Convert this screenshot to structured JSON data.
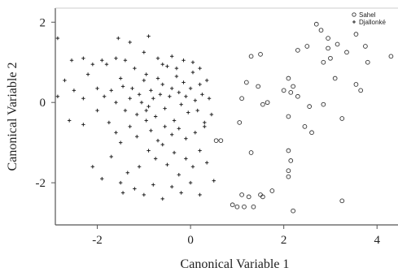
{
  "chart_data": {
    "type": "scatter",
    "title": "",
    "xlabel": "Canonical Variable 1",
    "ylabel": "Canonical Variable 2",
    "xlim": [
      -2.9,
      4.45
    ],
    "ylim": [
      -3.05,
      2.35
    ],
    "xticks": [
      -2,
      0,
      2,
      4
    ],
    "yticks": [
      -2,
      0,
      2
    ],
    "xtick_labels": [
      "-2",
      "0",
      "2",
      "4"
    ],
    "ytick_labels": [
      "-2",
      "0",
      "2"
    ],
    "grid": false,
    "legend_position": "top-right",
    "series": [
      {
        "name": "Sahel",
        "marker": "circle",
        "points": [
          [
            2.7,
            1.95
          ],
          [
            2.8,
            1.8
          ],
          [
            2.95,
            1.6
          ],
          [
            3.15,
            1.45
          ],
          [
            3.55,
            1.7
          ],
          [
            2.5,
            1.4
          ],
          [
            2.95,
            1.35
          ],
          [
            3.35,
            1.25
          ],
          [
            3.75,
            1.4
          ],
          [
            4.3,
            1.15
          ],
          [
            3.0,
            1.1
          ],
          [
            3.8,
            1.0
          ],
          [
            1.3,
            1.15
          ],
          [
            1.5,
            1.2
          ],
          [
            2.3,
            1.3
          ],
          [
            2.85,
            1.0
          ],
          [
            1.2,
            0.5
          ],
          [
            1.45,
            0.4
          ],
          [
            2.1,
            0.6
          ],
          [
            2.2,
            0.4
          ],
          [
            2.3,
            0.15
          ],
          [
            2.15,
            0.25
          ],
          [
            2.0,
            0.3
          ],
          [
            1.1,
            0.1
          ],
          [
            1.55,
            -0.05
          ],
          [
            1.65,
            0.0
          ],
          [
            2.55,
            -0.1
          ],
          [
            2.85,
            -0.05
          ],
          [
            3.55,
            0.45
          ],
          [
            3.65,
            0.3
          ],
          [
            3.1,
            0.6
          ],
          [
            2.45,
            -0.6
          ],
          [
            2.6,
            -0.75
          ],
          [
            3.25,
            -0.4
          ],
          [
            2.1,
            -0.35
          ],
          [
            1.05,
            -0.5
          ],
          [
            1.3,
            -1.25
          ],
          [
            0.55,
            -0.95
          ],
          [
            0.65,
            -0.95
          ],
          [
            2.1,
            -1.2
          ],
          [
            2.15,
            -1.45
          ],
          [
            2.1,
            -1.7
          ],
          [
            2.1,
            -1.85
          ],
          [
            1.5,
            -2.3
          ],
          [
            1.55,
            -2.35
          ],
          [
            1.75,
            -2.2
          ],
          [
            1.1,
            -2.3
          ],
          [
            1.25,
            -2.35
          ],
          [
            0.9,
            -2.55
          ],
          [
            1.0,
            -2.6
          ],
          [
            1.15,
            -2.6
          ],
          [
            1.35,
            -2.6
          ],
          [
            2.2,
            -2.7
          ],
          [
            3.25,
            -2.45
          ]
        ]
      },
      {
        "name": "Djallonké",
        "marker": "plus",
        "points": [
          [
            -2.85,
            1.6
          ],
          [
            -2.55,
            1.05
          ],
          [
            -2.3,
            1.1
          ],
          [
            -2.1,
            0.95
          ],
          [
            -2.2,
            0.7
          ],
          [
            -1.9,
            1.05
          ],
          [
            -1.6,
            1.1
          ],
          [
            -1.4,
            1.05
          ],
          [
            -1.55,
            1.6
          ],
          [
            -1.3,
            1.5
          ],
          [
            -0.9,
            1.65
          ],
          [
            -1.0,
            1.25
          ],
          [
            -0.7,
            1.1
          ],
          [
            -0.4,
            1.15
          ],
          [
            -0.15,
            1.05
          ],
          [
            0.05,
            1.0
          ],
          [
            0.2,
            0.85
          ],
          [
            -2.5,
            0.3
          ],
          [
            -2.3,
            0.1
          ],
          [
            -2.0,
            0.35
          ],
          [
            -1.85,
            0.15
          ],
          [
            -1.7,
            0.3
          ],
          [
            -1.6,
            0.0
          ],
          [
            -1.5,
            0.6
          ],
          [
            -1.45,
            0.4
          ],
          [
            -1.4,
            -0.2
          ],
          [
            -1.3,
            0.1
          ],
          [
            -1.25,
            0.35
          ],
          [
            -1.2,
            0.85
          ],
          [
            -1.15,
            -0.3
          ],
          [
            -1.1,
            0.2
          ],
          [
            -1.05,
            0.0
          ],
          [
            -1.0,
            0.55
          ],
          [
            -0.95,
            0.7
          ],
          [
            -0.9,
            -0.1
          ],
          [
            -0.85,
            0.3
          ],
          [
            -0.8,
            0.1
          ],
          [
            -0.75,
            -0.35
          ],
          [
            -0.7,
            0.6
          ],
          [
            -0.65,
            0.2
          ],
          [
            -0.6,
            0.45
          ],
          [
            -0.55,
            -0.15
          ],
          [
            -0.5,
            0.9
          ],
          [
            -0.45,
            0.15
          ],
          [
            -0.4,
            0.35
          ],
          [
            -0.35,
            -0.45
          ],
          [
            -0.3,
            0.65
          ],
          [
            -0.25,
            0.25
          ],
          [
            -0.2,
            -0.05
          ],
          [
            -0.15,
            0.5
          ],
          [
            -0.1,
            0.15
          ],
          [
            -0.05,
            -0.25
          ],
          [
            0.0,
            0.35
          ],
          [
            0.05,
            0.75
          ],
          [
            0.1,
            0.05
          ],
          [
            0.15,
            -0.2
          ],
          [
            0.2,
            0.45
          ],
          [
            0.25,
            0.2
          ],
          [
            0.3,
            -0.5
          ],
          [
            0.35,
            0.55
          ],
          [
            -1.75,
            -0.5
          ],
          [
            -1.6,
            -0.75
          ],
          [
            -1.5,
            -1.0
          ],
          [
            -1.3,
            -0.6
          ],
          [
            -1.15,
            -0.85
          ],
          [
            -0.95,
            -0.45
          ],
          [
            -0.85,
            -0.7
          ],
          [
            -0.7,
            -0.95
          ],
          [
            -0.55,
            -0.6
          ],
          [
            -0.4,
            -0.8
          ],
          [
            -0.25,
            -0.65
          ],
          [
            -0.1,
            -0.9
          ],
          [
            0.1,
            -0.75
          ],
          [
            0.3,
            -0.6
          ],
          [
            0.45,
            -0.3
          ],
          [
            -2.7,
            0.55
          ],
          [
            -2.85,
            0.15
          ],
          [
            -2.6,
            -0.45
          ],
          [
            -2.3,
            -0.55
          ],
          [
            -1.7,
            -1.35
          ],
          [
            -1.35,
            -1.75
          ],
          [
            -2.1,
            -1.6
          ],
          [
            -1.9,
            -1.9
          ],
          [
            -1.1,
            -1.6
          ],
          [
            -0.9,
            -1.2
          ],
          [
            -0.75,
            -1.4
          ],
          [
            -0.6,
            -1.05
          ],
          [
            -0.5,
            -1.55
          ],
          [
            -0.35,
            -1.25
          ],
          [
            -0.25,
            -1.8
          ],
          [
            -0.1,
            -1.4
          ],
          [
            0.05,
            -1.6
          ],
          [
            0.2,
            -1.2
          ],
          [
            0.35,
            -1.5
          ],
          [
            -1.5,
            -2.0
          ],
          [
            -1.45,
            -2.25
          ],
          [
            -1.2,
            -2.15
          ],
          [
            -1.0,
            -2.3
          ],
          [
            -0.8,
            -2.05
          ],
          [
            -0.6,
            -2.4
          ],
          [
            -0.4,
            -2.1
          ],
          [
            -0.2,
            -2.25
          ],
          [
            0.0,
            -2.0
          ],
          [
            0.2,
            -2.3
          ],
          [
            0.5,
            -1.95
          ],
          [
            -0.95,
            -0.2
          ],
          [
            -0.3,
            0.85
          ],
          [
            0.4,
            0.1
          ],
          [
            -1.8,
            0.95
          ],
          [
            -0.6,
            0.95
          ],
          [
            -2.0,
            -0.2
          ]
        ]
      }
    ]
  }
}
